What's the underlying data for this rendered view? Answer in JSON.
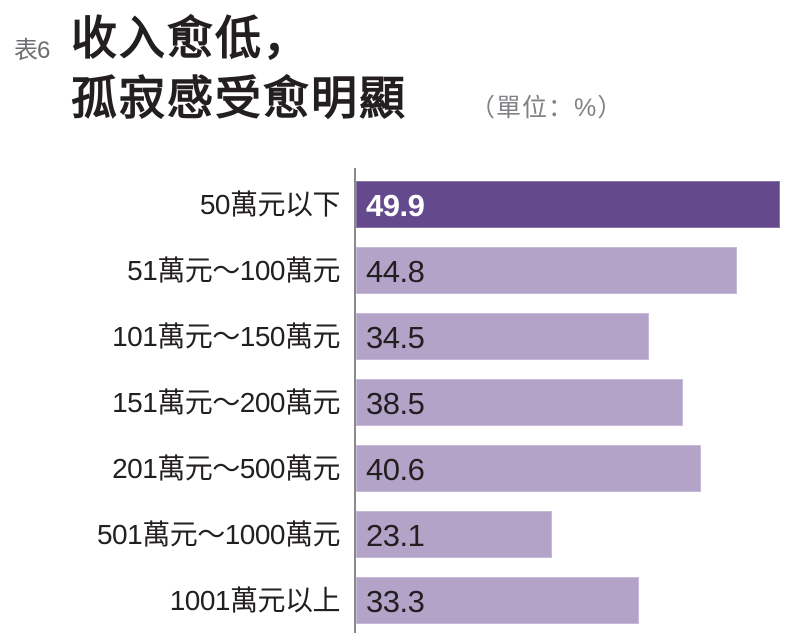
{
  "header": {
    "table_tag": "表6",
    "title_line1": "收入愈低，",
    "title_line2": "孤寂感受愈明顯",
    "unit": "（單位：%）"
  },
  "colors": {
    "highlight_bar": "#644a8c",
    "normal_bar": "#b3a3c9",
    "axis": "#8a8a8a",
    "text": "#231f20",
    "subtle_text": "#808285"
  },
  "chart_data": {
    "type": "bar",
    "orientation": "horizontal",
    "title": "收入愈低，孤寂感受愈明顯",
    "subtitle": "（單位：%）",
    "table_tag": "表6",
    "xlabel": "",
    "ylabel": "",
    "unit": "%",
    "categories": [
      "50萬元以下",
      "51萬元～100萬元",
      "101萬元～150萬元",
      "151萬元～200萬元",
      "201萬元～500萬元",
      "501萬元～1000萬元",
      "1001萬元以上"
    ],
    "values": [
      49.9,
      44.8,
      34.5,
      38.5,
      40.6,
      23.1,
      33.3
    ],
    "value_labels": [
      "49.9",
      "44.8",
      "34.5",
      "38.5",
      "40.6",
      "23.1",
      "33.3"
    ],
    "highlighted_index": 0,
    "xlim": [
      0,
      49.9
    ],
    "grid": false,
    "legend": null,
    "data_labels": "inside-left"
  }
}
